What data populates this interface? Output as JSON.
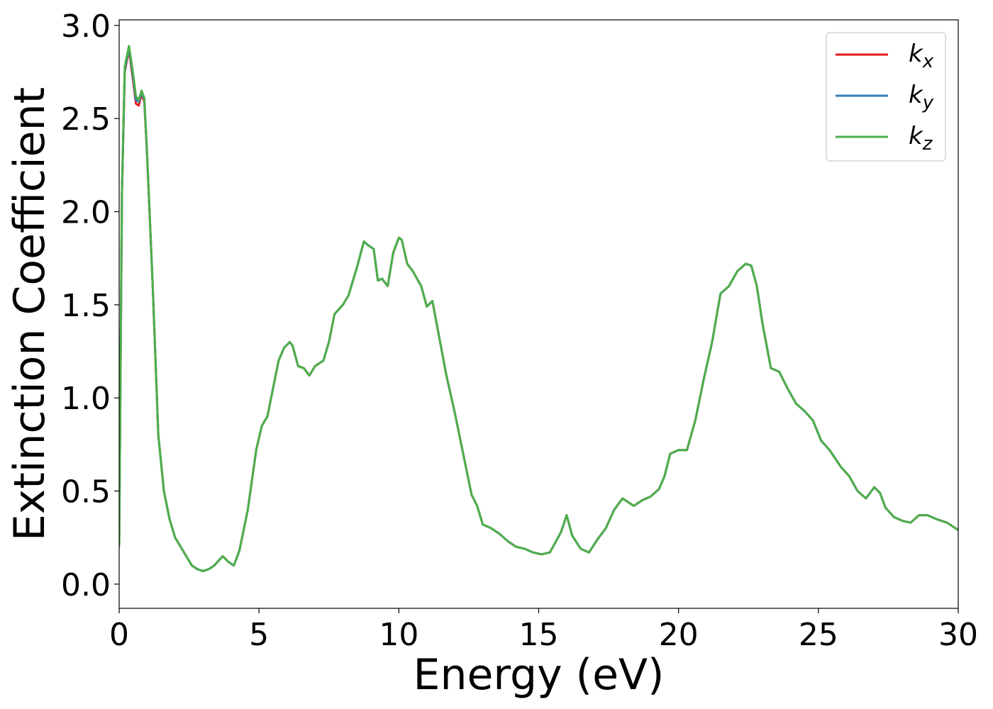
{
  "chart_data": {
    "type": "line",
    "title": "",
    "xlabel": "Energy (eV)",
    "ylabel": "Extinction Coefficient",
    "xlim": [
      0,
      30
    ],
    "ylim": [
      -0.13,
      3.03
    ],
    "xticks": [
      0,
      5,
      10,
      15,
      20,
      25,
      30
    ],
    "xtick_labels": [
      "0",
      "5",
      "10",
      "15",
      "20",
      "25",
      "30"
    ],
    "yticks": [
      0.0,
      0.5,
      1.0,
      1.5,
      2.0,
      2.5,
      3.0
    ],
    "ytick_labels": [
      "0.0",
      "0.5",
      "1.0",
      "1.5",
      "2.0",
      "2.5",
      "3.0"
    ],
    "grid": false,
    "legend_position": "top-right",
    "x": [
      0.0,
      0.1,
      0.2,
      0.35,
      0.5,
      0.6,
      0.7,
      0.8,
      0.9,
      1.0,
      1.2,
      1.4,
      1.6,
      1.8,
      2.0,
      2.2,
      2.4,
      2.6,
      2.8,
      3.0,
      3.2,
      3.4,
      3.7,
      3.9,
      4.1,
      4.3,
      4.6,
      4.9,
      5.1,
      5.3,
      5.5,
      5.7,
      5.9,
      6.1,
      6.2,
      6.4,
      6.6,
      6.8,
      7.0,
      7.3,
      7.5,
      7.7,
      8.0,
      8.2,
      8.5,
      8.75,
      8.9,
      9.1,
      9.25,
      9.4,
      9.6,
      9.8,
      10.0,
      10.1,
      10.3,
      10.5,
      10.8,
      11.0,
      11.2,
      11.4,
      11.7,
      12.0,
      12.3,
      12.6,
      12.8,
      13.0,
      13.3,
      13.6,
      13.9,
      14.2,
      14.5,
      14.8,
      15.1,
      15.4,
      15.8,
      16.0,
      16.2,
      16.5,
      16.8,
      17.1,
      17.4,
      17.7,
      18.0,
      18.4,
      18.7,
      19.0,
      19.3,
      19.5,
      19.7,
      20.0,
      20.3,
      20.6,
      20.9,
      21.2,
      21.5,
      21.8,
      22.1,
      22.4,
      22.6,
      22.8,
      23.0,
      23.3,
      23.6,
      23.9,
      24.2,
      24.5,
      24.8,
      25.1,
      25.4,
      25.8,
      26.1,
      26.4,
      26.7,
      27.0,
      27.2,
      27.4,
      27.7,
      28.0,
      28.3,
      28.6,
      28.9,
      29.2,
      29.6,
      30.0
    ],
    "series": [
      {
        "name": "k_x",
        "label_base": "k",
        "label_sub": "x",
        "color": "#e41a1c",
        "values": [
          0.2,
          2.1,
          2.75,
          2.87,
          2.7,
          2.58,
          2.57,
          2.63,
          2.59,
          2.3,
          1.6,
          0.8,
          0.5,
          0.35,
          0.25,
          0.2,
          0.15,
          0.1,
          0.08,
          0.07,
          0.08,
          0.1,
          0.15,
          0.12,
          0.1,
          0.18,
          0.4,
          0.72,
          0.85,
          0.9,
          1.05,
          1.2,
          1.27,
          1.3,
          1.28,
          1.17,
          1.16,
          1.12,
          1.17,
          1.2,
          1.3,
          1.45,
          1.5,
          1.55,
          1.7,
          1.84,
          1.82,
          1.8,
          1.63,
          1.64,
          1.6,
          1.78,
          1.86,
          1.85,
          1.72,
          1.68,
          1.6,
          1.49,
          1.52,
          1.36,
          1.12,
          0.92,
          0.7,
          0.48,
          0.42,
          0.32,
          0.3,
          0.27,
          0.23,
          0.2,
          0.19,
          0.17,
          0.16,
          0.17,
          0.28,
          0.37,
          0.26,
          0.19,
          0.17,
          0.24,
          0.3,
          0.4,
          0.46,
          0.42,
          0.45,
          0.47,
          0.51,
          0.58,
          0.7,
          0.72,
          0.72,
          0.88,
          1.1,
          1.3,
          1.56,
          1.6,
          1.68,
          1.72,
          1.71,
          1.6,
          1.4,
          1.16,
          1.14,
          1.05,
          0.97,
          0.93,
          0.88,
          0.77,
          0.72,
          0.63,
          0.58,
          0.5,
          0.46,
          0.52,
          0.49,
          0.41,
          0.36,
          0.34,
          0.33,
          0.37,
          0.37,
          0.35,
          0.33,
          0.29
        ]
      },
      {
        "name": "k_y",
        "label_base": "k",
        "label_sub": "y",
        "color": "#377eb8",
        "values": [
          0.2,
          2.1,
          2.76,
          2.88,
          2.72,
          2.6,
          2.59,
          2.64,
          2.6,
          2.3,
          1.6,
          0.8,
          0.5,
          0.35,
          0.25,
          0.2,
          0.15,
          0.1,
          0.08,
          0.07,
          0.08,
          0.1,
          0.15,
          0.12,
          0.1,
          0.18,
          0.4,
          0.72,
          0.85,
          0.9,
          1.05,
          1.2,
          1.27,
          1.3,
          1.28,
          1.17,
          1.16,
          1.12,
          1.17,
          1.2,
          1.3,
          1.45,
          1.5,
          1.55,
          1.7,
          1.84,
          1.82,
          1.8,
          1.63,
          1.64,
          1.6,
          1.78,
          1.86,
          1.85,
          1.72,
          1.68,
          1.6,
          1.49,
          1.52,
          1.36,
          1.12,
          0.92,
          0.7,
          0.48,
          0.42,
          0.32,
          0.3,
          0.27,
          0.23,
          0.2,
          0.19,
          0.17,
          0.16,
          0.17,
          0.28,
          0.37,
          0.26,
          0.19,
          0.17,
          0.24,
          0.3,
          0.4,
          0.46,
          0.42,
          0.45,
          0.47,
          0.51,
          0.58,
          0.7,
          0.72,
          0.72,
          0.88,
          1.1,
          1.3,
          1.56,
          1.6,
          1.68,
          1.72,
          1.71,
          1.6,
          1.4,
          1.16,
          1.14,
          1.05,
          0.97,
          0.93,
          0.88,
          0.77,
          0.72,
          0.63,
          0.58,
          0.5,
          0.46,
          0.52,
          0.49,
          0.41,
          0.36,
          0.34,
          0.33,
          0.37,
          0.37,
          0.35,
          0.33,
          0.29
        ]
      },
      {
        "name": "k_z",
        "label_base": "k",
        "label_sub": "z",
        "color": "#4daf4a",
        "values": [
          0.2,
          2.12,
          2.78,
          2.89,
          2.74,
          2.62,
          2.6,
          2.65,
          2.61,
          2.31,
          1.6,
          0.8,
          0.5,
          0.35,
          0.25,
          0.2,
          0.15,
          0.1,
          0.08,
          0.07,
          0.08,
          0.1,
          0.15,
          0.12,
          0.1,
          0.18,
          0.4,
          0.72,
          0.85,
          0.9,
          1.05,
          1.2,
          1.27,
          1.3,
          1.28,
          1.17,
          1.16,
          1.12,
          1.17,
          1.2,
          1.3,
          1.45,
          1.5,
          1.55,
          1.7,
          1.84,
          1.82,
          1.8,
          1.63,
          1.64,
          1.6,
          1.78,
          1.86,
          1.85,
          1.72,
          1.68,
          1.6,
          1.49,
          1.52,
          1.36,
          1.12,
          0.92,
          0.7,
          0.48,
          0.42,
          0.32,
          0.3,
          0.27,
          0.23,
          0.2,
          0.19,
          0.17,
          0.16,
          0.17,
          0.28,
          0.37,
          0.26,
          0.19,
          0.17,
          0.24,
          0.3,
          0.4,
          0.46,
          0.42,
          0.45,
          0.47,
          0.51,
          0.58,
          0.7,
          0.72,
          0.72,
          0.88,
          1.1,
          1.3,
          1.56,
          1.6,
          1.68,
          1.72,
          1.71,
          1.6,
          1.4,
          1.16,
          1.14,
          1.05,
          0.97,
          0.93,
          0.88,
          0.77,
          0.72,
          0.63,
          0.58,
          0.5,
          0.46,
          0.52,
          0.49,
          0.41,
          0.36,
          0.34,
          0.33,
          0.37,
          0.37,
          0.35,
          0.33,
          0.29
        ]
      }
    ]
  }
}
